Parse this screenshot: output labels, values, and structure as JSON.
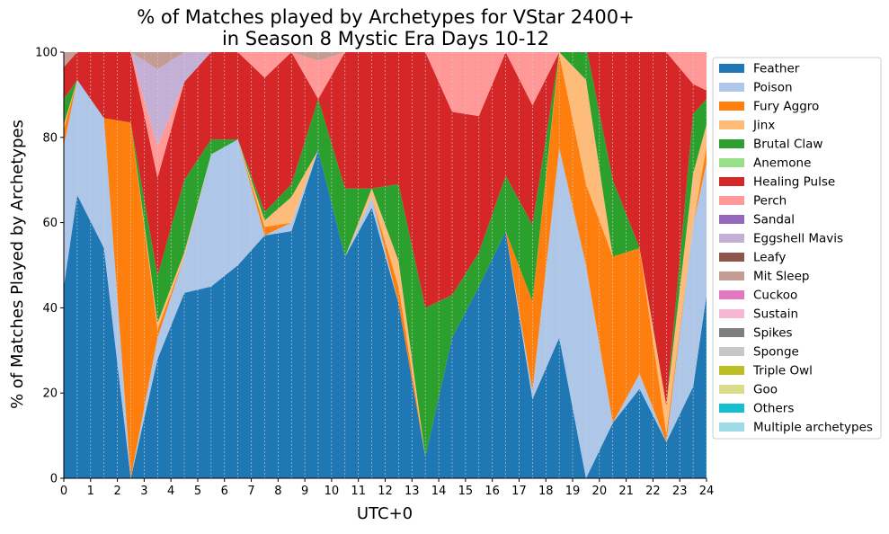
{
  "chart_data": {
    "type": "area",
    "stacked": true,
    "title_line1": "% of Matches played by Archetypes for VStar 2400+",
    "title_line2": "in Season 8 Mystic Era Days 10-12",
    "xlabel": "UTC+0",
    "ylabel": "% of Matches Played by Archetypes",
    "xlim": [
      0,
      24
    ],
    "ylim": [
      0,
      100
    ],
    "x_ticks": [
      "0",
      "1",
      "2",
      "3",
      "4",
      "5",
      "6",
      "7",
      "8",
      "9",
      "10",
      "11",
      "12",
      "13",
      "14",
      "15",
      "16",
      "17",
      "18",
      "19",
      "20",
      "21",
      "22",
      "23",
      "24"
    ],
    "y_ticks": [
      "0",
      "20",
      "40",
      "60",
      "80",
      "100"
    ],
    "vertical_grid": true,
    "legend_position": "outside-right",
    "x": [
      0,
      0.5,
      1.5,
      2.5,
      3.5,
      4.5,
      5.5,
      6.5,
      7.5,
      8.5,
      9.5,
      10.5,
      11.5,
      12.5,
      13.5,
      14.5,
      15.5,
      16.5,
      17.5,
      18.5,
      19.5,
      20.5,
      21.5,
      22.5,
      23.5,
      24
    ],
    "series": [
      {
        "name": "Feather",
        "color": "#1f77b4",
        "values": [
          45,
          66.5,
          54,
          0,
          28,
          43.5,
          45,
          50,
          57,
          58,
          77,
          52,
          63.5,
          41,
          5,
          33,
          45,
          58,
          18.5,
          33,
          0,
          13,
          21,
          8.5,
          21.5,
          43
        ]
      },
      {
        "name": "Poison",
        "color": "#aec7e8",
        "values": [
          33,
          27,
          30.5,
          0,
          5,
          8.5,
          31,
          29.5,
          0,
          2,
          0,
          0,
          2.5,
          0,
          0,
          0,
          0,
          0,
          2,
          44.5,
          50,
          0,
          3.5,
          0,
          38,
          31
        ]
      },
      {
        "name": "Fury Aggro",
        "color": "#ff7f0e",
        "values": [
          4,
          0,
          0,
          83.5,
          2,
          0,
          0,
          0,
          2,
          0,
          0,
          0,
          0,
          4,
          0,
          0,
          0,
          0,
          21,
          22,
          19,
          39,
          29.5,
          2,
          0,
          4
        ]
      },
      {
        "name": "Jinx",
        "color": "#ffbb78",
        "values": [
          1,
          0,
          0,
          0,
          1.5,
          1,
          0,
          0,
          1.5,
          6,
          0,
          0,
          2,
          6,
          0,
          0,
          0,
          0,
          0,
          0.5,
          24.5,
          0,
          0,
          6.5,
          12,
          5
        ]
      },
      {
        "name": "Brutal Claw",
        "color": "#2ca02c",
        "values": [
          6,
          0,
          0,
          0,
          11,
          17,
          3.5,
          0,
          2,
          3,
          12,
          16,
          0,
          18,
          35,
          10,
          8,
          13,
          18,
          0,
          8,
          18,
          0,
          0,
          14,
          6
        ]
      },
      {
        "name": "Anemone",
        "color": "#98df8a",
        "values": [
          0,
          0,
          0,
          0,
          0,
          0,
          0,
          0,
          0,
          0,
          0,
          0,
          0,
          0,
          0,
          0,
          0,
          0,
          0,
          0,
          0,
          0,
          0,
          0,
          0,
          0
        ]
      },
      {
        "name": "Healing Pulse",
        "color": "#d62728",
        "values": [
          7.5,
          6.5,
          15.5,
          16.5,
          23,
          23,
          20.5,
          20.5,
          31.5,
          31,
          0,
          32,
          32,
          31,
          60,
          43,
          32,
          29,
          28,
          0,
          0,
          30,
          46,
          83,
          7,
          2
        ]
      },
      {
        "name": "Perch",
        "color": "#ff9896",
        "values": [
          0,
          0,
          0,
          0,
          7.5,
          0,
          0,
          0,
          6,
          0,
          9,
          0,
          0,
          0,
          0,
          14,
          15,
          0,
          12.5,
          0,
          0,
          0,
          0,
          0,
          7.5,
          9
        ]
      },
      {
        "name": "Sandal",
        "color": "#9467bd",
        "values": [
          0,
          0,
          0,
          0,
          0,
          0,
          0,
          0,
          0,
          0,
          0,
          0,
          0,
          0,
          0,
          0,
          0,
          0,
          0,
          0,
          0,
          0,
          0,
          0,
          0,
          0
        ]
      },
      {
        "name": "Eggshell Mavis",
        "color": "#c5b0d5",
        "values": [
          0,
          0,
          0,
          0,
          18,
          7,
          0,
          0,
          0,
          0,
          0,
          0,
          0,
          0,
          0,
          0,
          0,
          0,
          0,
          0,
          0,
          0,
          0,
          0,
          0,
          0
        ]
      },
      {
        "name": "Leafy",
        "color": "#8c564b",
        "values": [
          0,
          0,
          0,
          0,
          0,
          0,
          0,
          0,
          0,
          0,
          0,
          0,
          0,
          0,
          0,
          0,
          0,
          0,
          0,
          0,
          0,
          0,
          0,
          0,
          0,
          0
        ]
      },
      {
        "name": "Mit Sleep",
        "color": "#c49c94",
        "values": [
          3.5,
          0,
          0,
          0,
          4,
          0,
          0,
          0,
          0,
          0,
          2,
          0,
          0,
          0,
          0,
          0,
          0,
          0,
          0,
          0,
          0,
          0,
          0,
          0,
          0,
          0
        ]
      },
      {
        "name": "Cuckoo",
        "color": "#e377c2",
        "values": [
          0,
          0,
          0,
          0,
          0,
          0,
          0,
          0,
          0,
          0,
          0,
          0,
          0,
          0,
          0,
          0,
          0,
          0,
          0,
          0,
          0,
          0,
          0,
          0,
          0,
          0
        ]
      },
      {
        "name": "Sustain",
        "color": "#f7b6d2",
        "values": [
          0,
          0,
          0,
          0,
          0,
          0,
          0,
          0,
          0,
          0,
          0,
          0,
          0,
          0,
          0,
          0,
          0,
          0,
          0,
          0,
          0,
          0,
          0,
          0,
          0,
          0
        ]
      },
      {
        "name": "Spikes",
        "color": "#7f7f7f",
        "values": [
          0,
          0,
          0,
          0,
          0,
          0,
          0,
          0,
          0,
          0,
          0,
          0,
          0,
          0,
          0,
          0,
          0,
          0,
          0,
          0,
          0,
          0,
          0,
          0,
          0,
          0
        ]
      },
      {
        "name": "Sponge",
        "color": "#c7c7c7",
        "values": [
          0,
          0,
          0,
          0,
          0,
          0,
          0,
          0,
          0,
          0,
          0,
          0,
          0,
          0,
          0,
          0,
          0,
          0,
          0,
          0,
          0,
          0,
          0,
          0,
          0,
          0
        ]
      },
      {
        "name": "Triple Owl",
        "color": "#bcbd22",
        "values": [
          0,
          0,
          0,
          0,
          0,
          0,
          0,
          0,
          0,
          0,
          0,
          0,
          0,
          0,
          0,
          0,
          0,
          0,
          0,
          0,
          0,
          0,
          0,
          0,
          0,
          0
        ]
      },
      {
        "name": "Goo",
        "color": "#dbdb8d",
        "values": [
          0,
          0,
          0,
          0,
          0,
          0,
          0,
          0,
          0,
          0,
          0,
          0,
          0,
          0,
          0,
          0,
          0,
          0,
          0,
          0,
          0,
          0,
          0,
          0,
          0,
          0
        ]
      },
      {
        "name": "Others",
        "color": "#17becf",
        "values": [
          0,
          0,
          0,
          0,
          0,
          0,
          0,
          0,
          0,
          0,
          0,
          0,
          0,
          0,
          0,
          0,
          0,
          0,
          0,
          0,
          0,
          0,
          0,
          0,
          0,
          0
        ]
      },
      {
        "name": "Multiple archetypes",
        "color": "#9edae5",
        "values": [
          0,
          0,
          0,
          0,
          0,
          0,
          0,
          0,
          0,
          0,
          0,
          0,
          0,
          0,
          0,
          0,
          0,
          0,
          0,
          0,
          0,
          0,
          0,
          0,
          0,
          0
        ]
      }
    ]
  }
}
